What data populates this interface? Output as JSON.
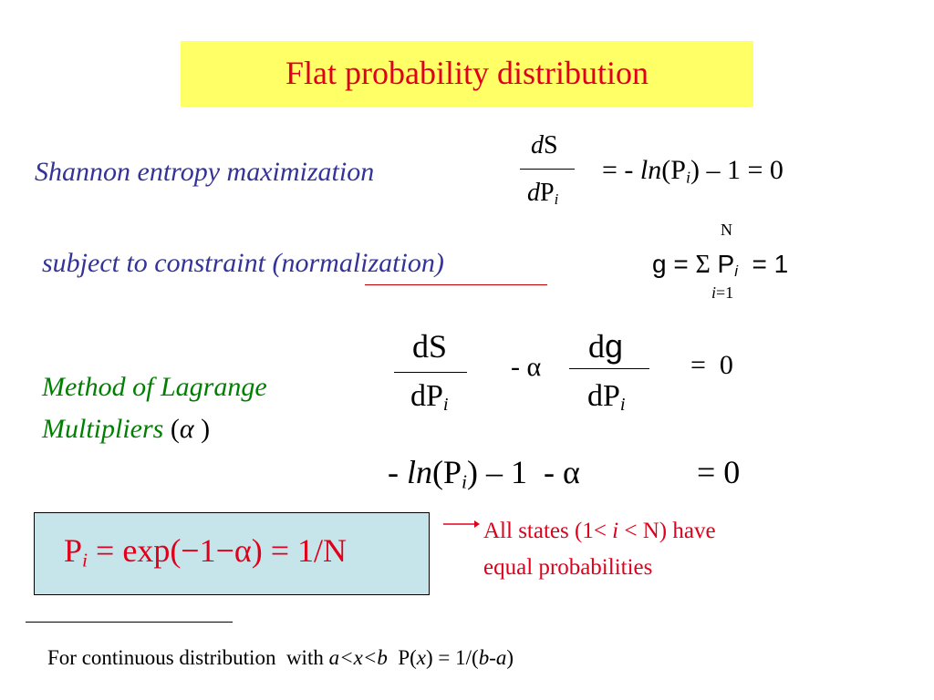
{
  "title": "Flat probability distribution",
  "shannon": {
    "label": "Shannon entropy maximization",
    "derivative": {
      "numerator": [
        "d",
        "S"
      ],
      "denominator": [
        "d",
        "P",
        "i"
      ]
    },
    "rhs": [
      "= - ",
      "ln",
      "(P",
      "i",
      ") – 1 = 0"
    ]
  },
  "constraint": {
    "label": [
      "subject to constraint (",
      "normalization",
      ")"
    ],
    "equation": [
      "g = ",
      "Σ",
      " P",
      "i",
      "  = 1"
    ],
    "upper_limit": "N",
    "lower_limit": [
      "i",
      "=1"
    ]
  },
  "lagrange": {
    "label": [
      "Method of Lagrange",
      "Multipliers",
      "(",
      "α",
      " )"
    ],
    "term1": {
      "numerator": "dS",
      "denominator": [
        "dP",
        "i"
      ]
    },
    "operator": "- α",
    "term2": {
      "numerator": [
        "d",
        "g"
      ],
      "denominator": [
        "dP",
        "i"
      ]
    },
    "rhs": "=  0",
    "result": [
      "- ",
      "ln",
      "(P",
      "i",
      ") – 1  - α",
      "= 0"
    ]
  },
  "solution": {
    "equation": [
      "P",
      "i",
      " = exp(−1−α) = 1/N"
    ],
    "note": [
      "All states (1< ",
      "i",
      " < N) have",
      "equal probabilities"
    ]
  },
  "footnote": [
    "For continuous distribution  with ",
    "a<x<b",
    "  P(",
    "x",
    ") = 1/(",
    "b-a",
    ")"
  ]
}
